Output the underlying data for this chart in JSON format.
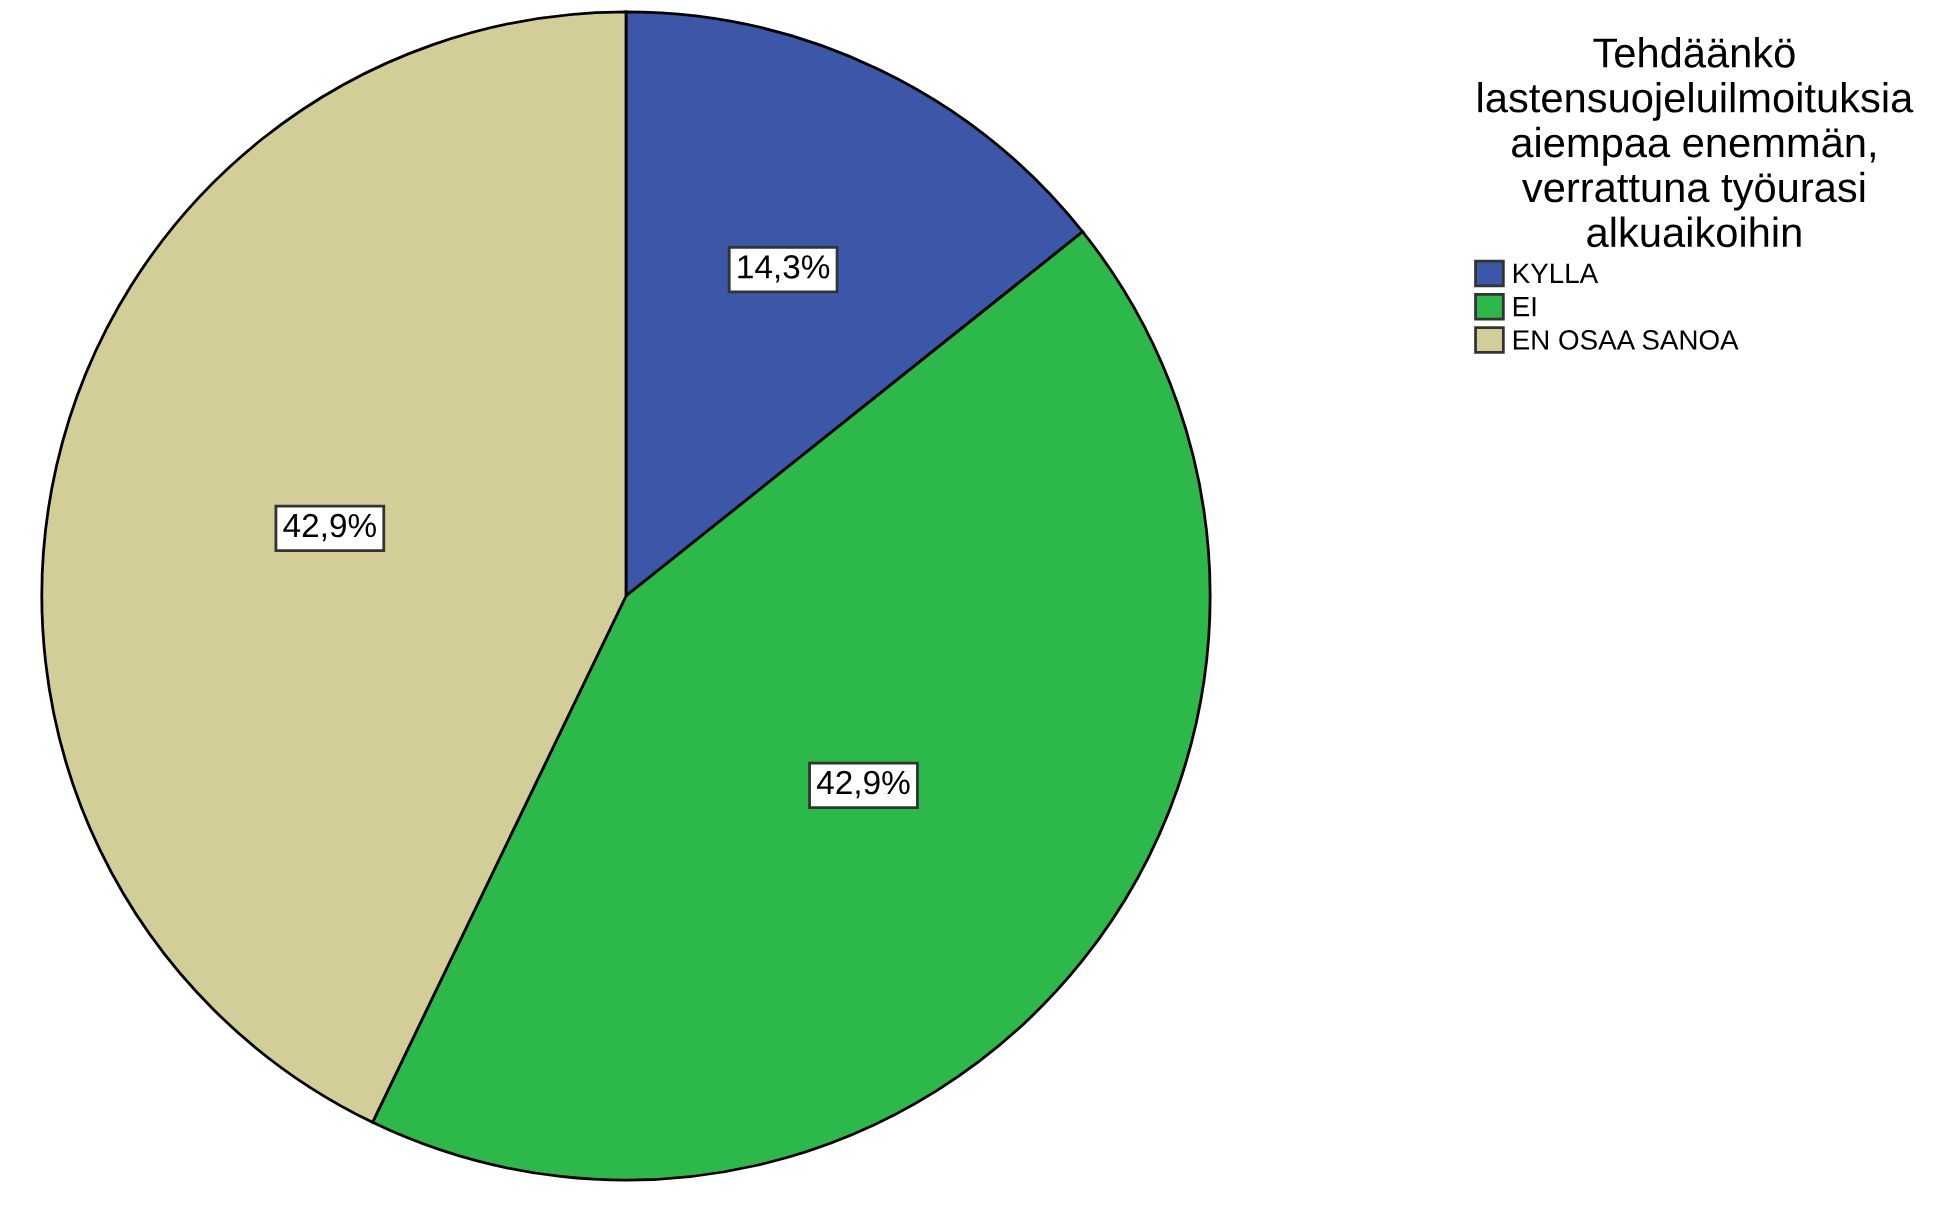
{
  "chart_data": {
    "type": "pie",
    "categories": [
      "KYLLA",
      "EI",
      "EN OSAA SANOA"
    ],
    "values": [
      14.3,
      42.9,
      42.9
    ],
    "value_labels": [
      "14,3%",
      "42,9%",
      "42,9%"
    ],
    "colors": [
      "#3c56a8",
      "#2db84a",
      "#d3ce97"
    ],
    "legend_title": "Tehdäänkö\nlastensuojeluilmoituksia\naiempaa enemmän,\nverrattuna työurasi\nalkuaikoihin",
    "legend": "top right"
  }
}
